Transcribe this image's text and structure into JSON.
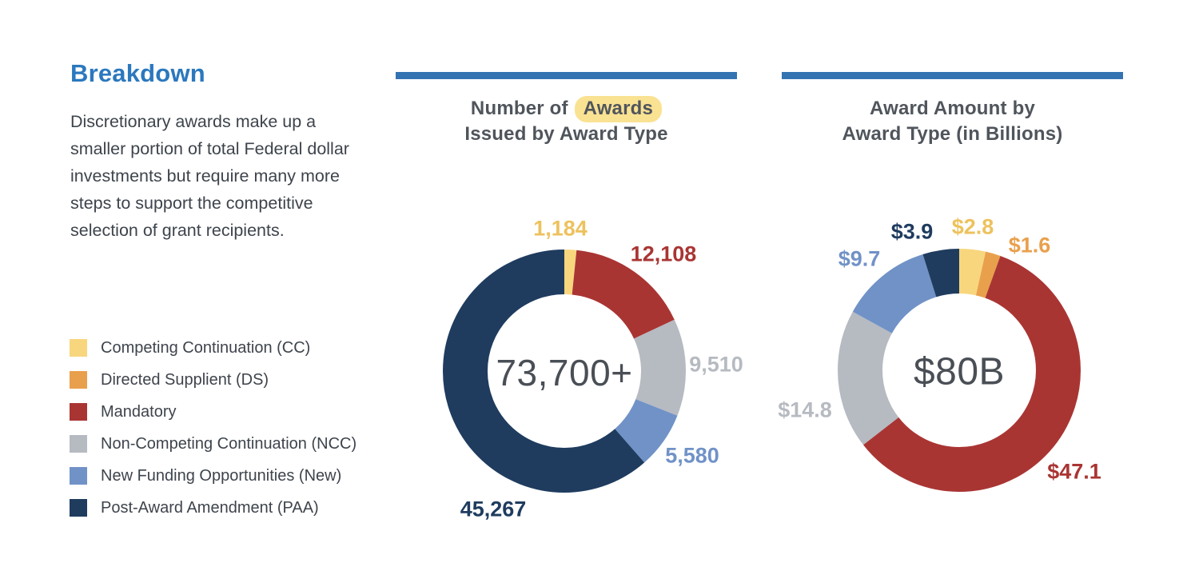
{
  "colors": {
    "cc": "#F8D67D",
    "ds": "#E9A04C",
    "mandatory": "#A93533",
    "ncc": "#B6BAC1",
    "new": "#7092C7",
    "paa": "#1F3C5F",
    "cc_label": "#EDC25D",
    "heading_blue": "#2B78BE",
    "bar_blue": "#3373B2",
    "title_gray": "#50555C",
    "body_text": "#3E444C",
    "center_text": "#4A4F56",
    "highlight": "#FAE293"
  },
  "sidebar": {
    "title": "Breakdown",
    "paragraph": "Discretionary awards make up a smaller portion of total Federal dollar investments but require many more steps to support the competitive selection of grant recipients.",
    "legend": [
      {
        "key": "cc",
        "label": "Competing Continuation (CC)"
      },
      {
        "key": "ds",
        "label": "Directed Supplient (DS)"
      },
      {
        "key": "mandatory",
        "label": "Mandatory"
      },
      {
        "key": "ncc",
        "label": "Non-Competing Continuation (NCC)"
      },
      {
        "key": "new",
        "label": "New Funding Opportunities (New)"
      },
      {
        "key": "paa",
        "label": "Post-Award Amendment (PAA)"
      }
    ]
  },
  "chart_data": [
    {
      "type": "donut",
      "title": "Number of Awards Issued by Award Type",
      "title_parts": {
        "prefix": "Number of ",
        "highlight": "Awards",
        "line2": "Issued by Award Type"
      },
      "center_label": "73,700+",
      "segments": [
        {
          "key": "cc",
          "name": "Competing Continuation (CC)",
          "value": 1184,
          "label": "1,184"
        },
        {
          "key": "mandatory",
          "name": "Mandatory",
          "value": 12108,
          "label": "12,108"
        },
        {
          "key": "ncc",
          "name": "Non-Competing Continuation (NCC)",
          "value": 9510,
          "label": "9,510"
        },
        {
          "key": "new",
          "name": "New Funding Opportunities (New)",
          "value": 5580,
          "label": "5,580"
        },
        {
          "key": "paa",
          "name": "Post-Award Amendment (PAA)",
          "value": 45267,
          "label": "45,267"
        }
      ]
    },
    {
      "type": "donut",
      "title": "Award Amount by Award Type (in Billions)",
      "title_parts": {
        "line1": "Award Amount by",
        "line2": "Award Type (in Billions)"
      },
      "center_label": "$80B",
      "segments": [
        {
          "key": "cc",
          "name": "Competing Continuation (CC)",
          "value": 2.8,
          "label": "$2.8"
        },
        {
          "key": "ds",
          "name": "Directed Supplient (DS)",
          "value": 1.6,
          "label": "$1.6"
        },
        {
          "key": "mandatory",
          "name": "Mandatory",
          "value": 47.1,
          "label": "$47.1"
        },
        {
          "key": "ncc",
          "name": "Non-Competing Continuation (NCC)",
          "value": 14.8,
          "label": "$14.8"
        },
        {
          "key": "new",
          "name": "New Funding Opportunities (New)",
          "value": 9.7,
          "label": "$9.7"
        },
        {
          "key": "paa",
          "name": "Post-Award Amendment (PAA)",
          "value": 3.9,
          "label": "$3.9"
        }
      ]
    }
  ]
}
